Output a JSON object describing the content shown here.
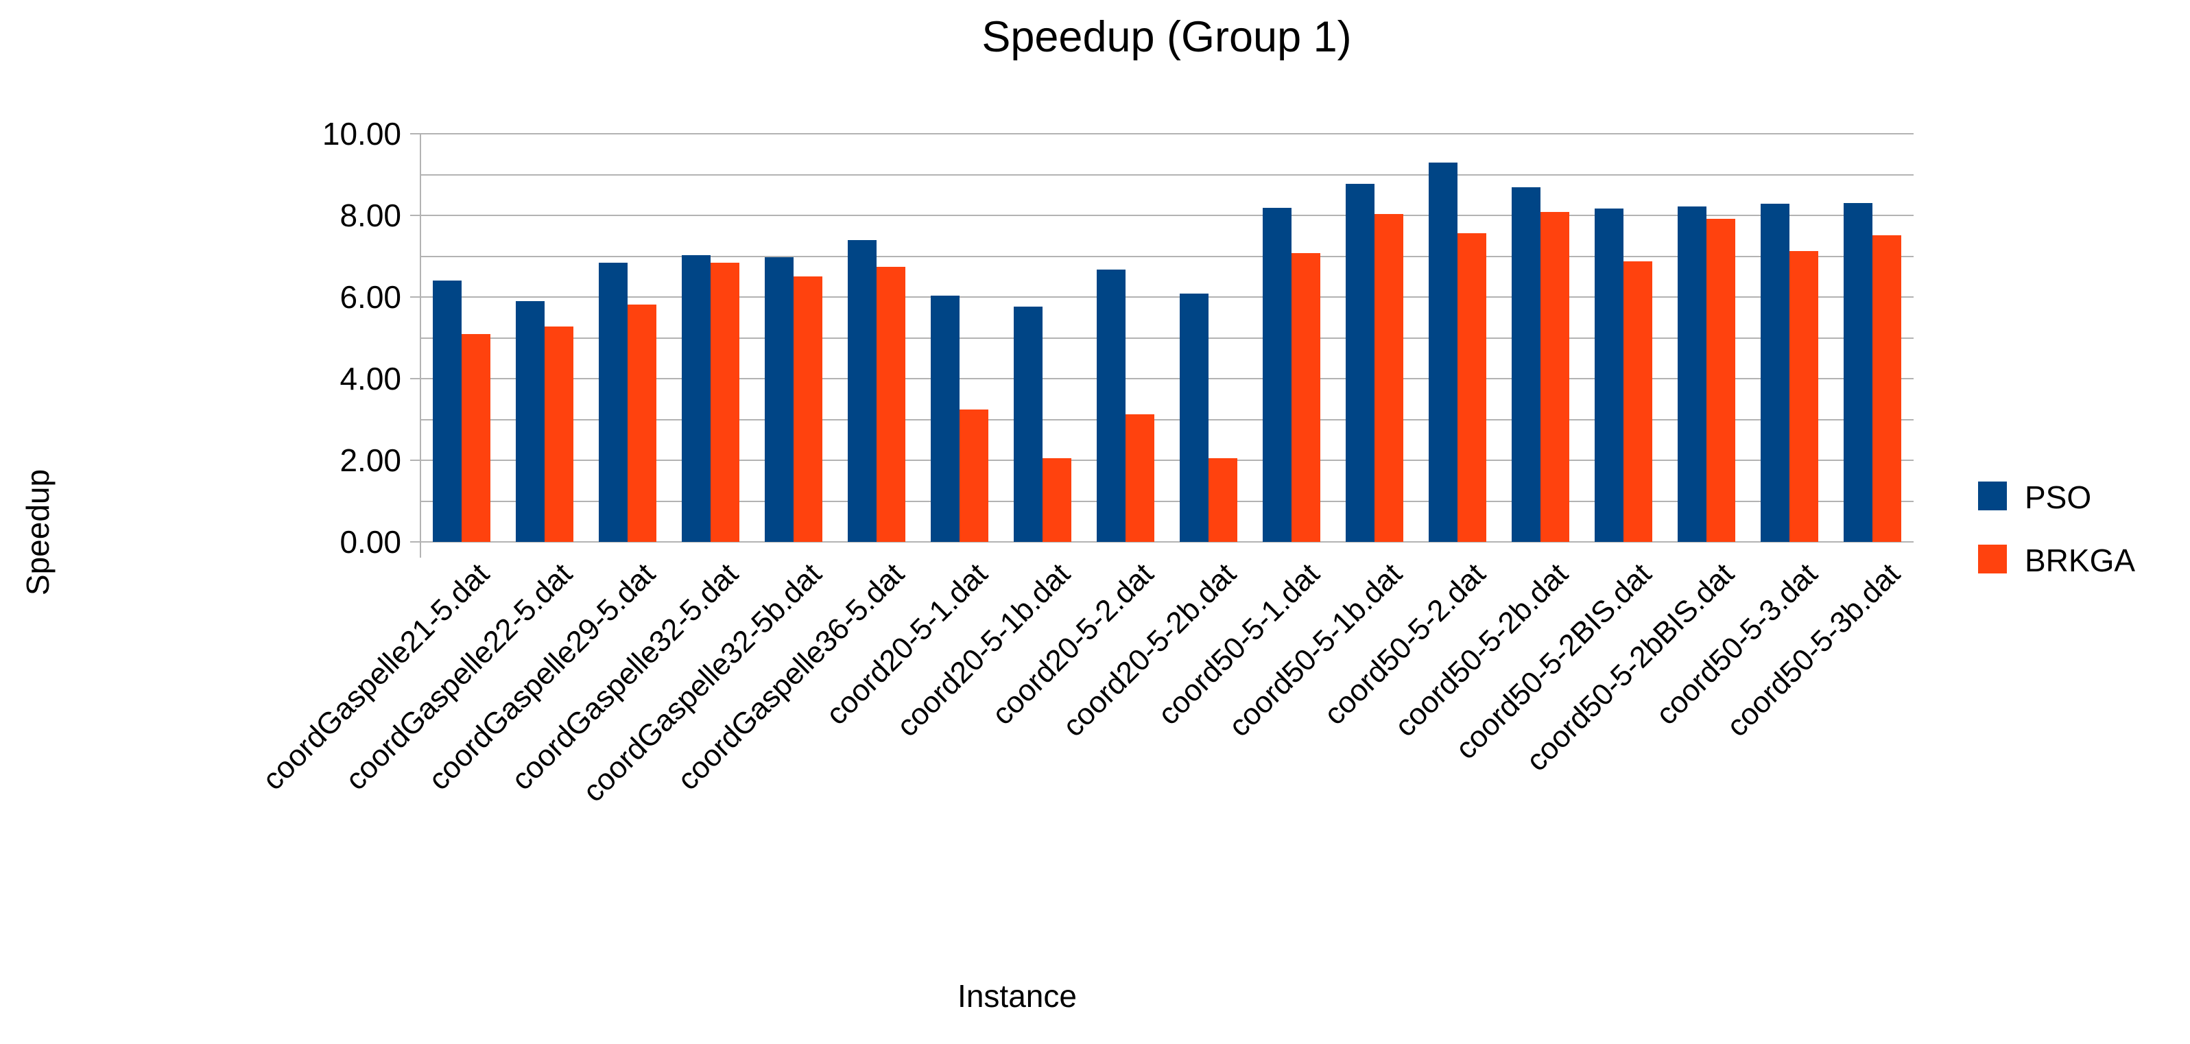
{
  "title": "Speedup (Group 1)",
  "y_axis_title": "Speedup",
  "x_axis_title": "Instance",
  "y_tick_labels": [
    "0.00",
    "2.00",
    "4.00",
    "6.00",
    "8.00",
    "10.00"
  ],
  "colors": {
    "pso": "#004586",
    "brkga": "#FF420E",
    "gridline": "#b3b3b3",
    "text": "#000000",
    "background": "#ffffff"
  },
  "chart_data": {
    "type": "bar",
    "title": "Speedup (Group 1)",
    "xlabel": "Instance",
    "ylabel": "Speedup",
    "ylim": [
      0,
      10
    ],
    "grid": true,
    "gridline_interval": 1.0,
    "y_label_interval": 2.0,
    "legend_position": "right",
    "categories": [
      "coordGaspelle21-5.dat",
      "coordGaspelle22-5.dat",
      "coordGaspelle29-5.dat",
      "coordGaspelle32-5.dat",
      "coordGaspelle32-5b.dat",
      "coordGaspelle36-5.dat",
      "coord20-5-1.dat",
      "coord20-5-1b.dat",
      "coord20-5-2.dat",
      "coord20-5-2b.dat",
      "coord50-5-1.dat",
      "coord50-5-1b.dat",
      "coord50-5-2.dat",
      "coord50-5-2b.dat",
      "coord50-5-2BIS.dat",
      "coord50-5-2bBIS.dat",
      "coord50-5-3.dat",
      "coord50-5-3b.dat"
    ],
    "series": [
      {
        "name": "PSO",
        "color": "#004586",
        "values": [
          6.4,
          5.9,
          6.84,
          7.02,
          6.97,
          7.4,
          6.04,
          5.77,
          6.67,
          6.08,
          8.18,
          8.78,
          9.29,
          8.69,
          8.17,
          8.22,
          8.29,
          8.3
        ]
      },
      {
        "name": "BRKGA",
        "color": "#FF420E",
        "values": [
          5.1,
          5.27,
          5.82,
          6.84,
          6.51,
          6.74,
          3.24,
          2.05,
          3.12,
          2.05,
          7.07,
          8.03,
          7.57,
          8.08,
          6.87,
          7.91,
          7.13,
          7.51
        ]
      }
    ]
  }
}
